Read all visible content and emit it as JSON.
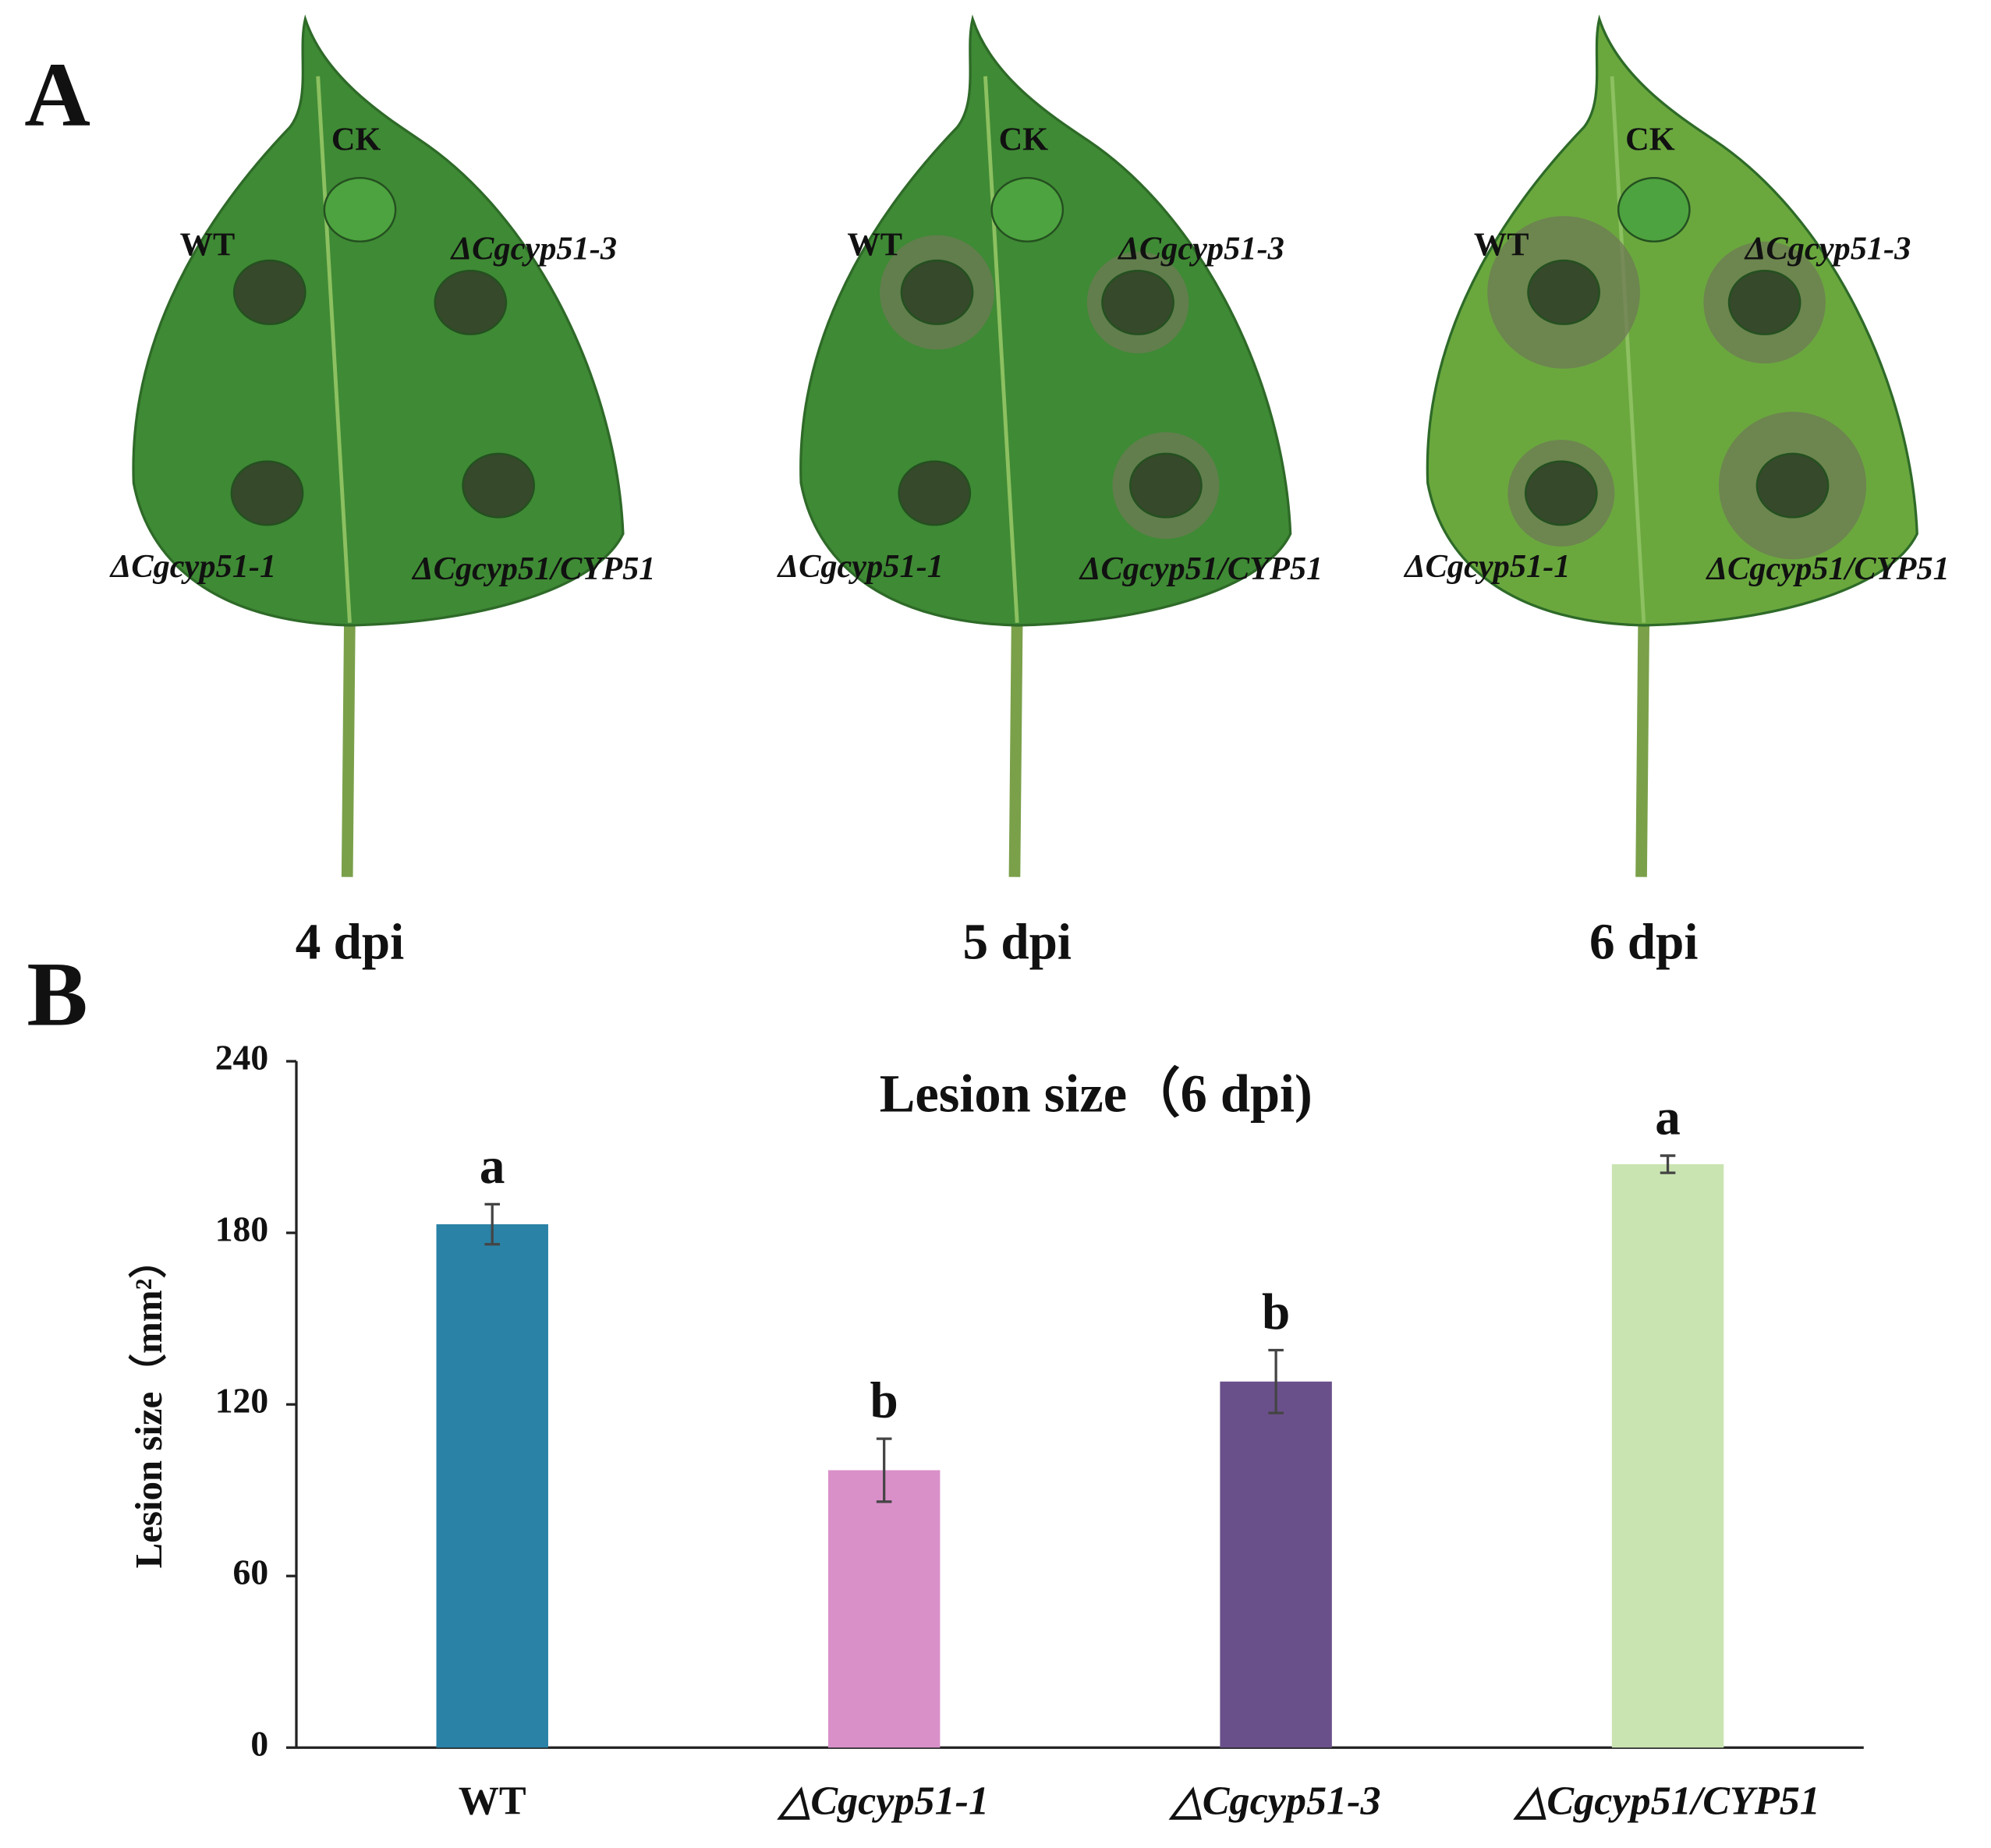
{
  "panels": {
    "a": "A",
    "b": "B"
  },
  "photos": [
    {
      "caption": "4 dpi",
      "labels": [
        "CK",
        "WT",
        "ΔCgcyp51-3",
        "ΔCgcyp51-1",
        "ΔCgcyp51/CYP51"
      ]
    },
    {
      "caption": "5 dpi",
      "labels": [
        "CK",
        "WT",
        "ΔCgcyp51-3",
        "ΔCgcyp51-1",
        "ΔCgcyp51/CYP51"
      ]
    },
    {
      "caption": "6 dpi",
      "labels": [
        "CK",
        "WT",
        "ΔCgcyp51-3",
        "ΔCgcyp51-1",
        "ΔCgcyp51/CYP51"
      ]
    }
  ],
  "chart_data": {
    "type": "bar",
    "title": "Lesion size（6 dpi)",
    "y_label": "Lesion size（mm²）",
    "categories": [
      "WT",
      "△Cgcyp51-1",
      "△Cgcyp51-3",
      "△Cgcyp51/CYP51"
    ],
    "values": [
      183,
      97,
      128,
      204
    ],
    "errors": [
      7,
      11,
      11,
      3
    ],
    "significance": [
      "a",
      "b",
      "b",
      "a"
    ],
    "colors": [
      "#2a82a6",
      "#d990c9",
      "#6a508a",
      "#c9e4b1"
    ],
    "ylim": [
      0,
      240
    ],
    "yticks": [
      0,
      60,
      120,
      180,
      240
    ],
    "grid": false
  }
}
